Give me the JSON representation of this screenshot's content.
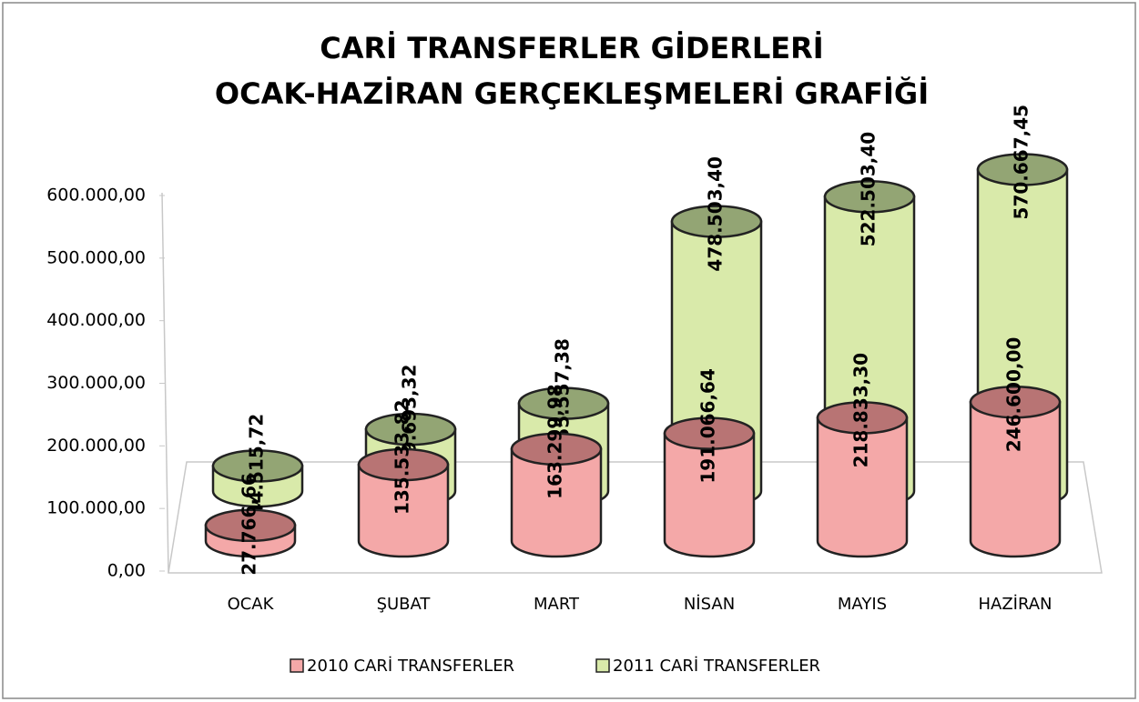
{
  "chart_data": {
    "type": "cylinder3d",
    "title": [
      "CARİ TRANSFERLER GİDERLERİ",
      "OCAK-HAZİRAN GERÇEKLEŞMELERİ GRAFİĞİ"
    ],
    "categories": [
      "OCAK",
      "ŞUBAT",
      "MART",
      "NİSAN",
      "MAYIS",
      "HAZİRAN"
    ],
    "series": [
      {
        "name": "2010 CARİ TRANSFERLER",
        "color": "#f4a8a8",
        "top_color": "#b87474",
        "values": [
          27766.66,
          135533.82,
          163299.98,
          191066.64,
          218833.3,
          246600.0
        ],
        "value_labels": [
          "27.766,66",
          "135.533,82",
          "163.299,98",
          "191.066,64",
          "218.833,30",
          "246.600,00"
        ]
      },
      {
        "name": "2011 CARİ TRANSFERLER",
        "color": "#d9eaaa",
        "top_color": "#93a574",
        "values": [
          44515.72,
          109693.32,
          155557.38,
          478503.4,
          522503.4,
          570667.45
        ],
        "value_labels": [
          "44.515,72",
          "109.693,32",
          "155.557,38",
          "478.503,40",
          "522.503,40",
          "570.667,45"
        ]
      }
    ],
    "ylim": [
      0,
      600000
    ],
    "yticks": [
      {
        "value": 0,
        "label": "0,00"
      },
      {
        "value": 100000,
        "label": "100.000,00"
      },
      {
        "value": 200000,
        "label": "200.000,00"
      },
      {
        "value": 300000,
        "label": "300.000,00"
      },
      {
        "value": 400000,
        "label": "400.000,00"
      },
      {
        "value": 500000,
        "label": "500.000,00"
      },
      {
        "value": 600000,
        "label": "600.000,00"
      }
    ],
    "legend": "bottom"
  }
}
